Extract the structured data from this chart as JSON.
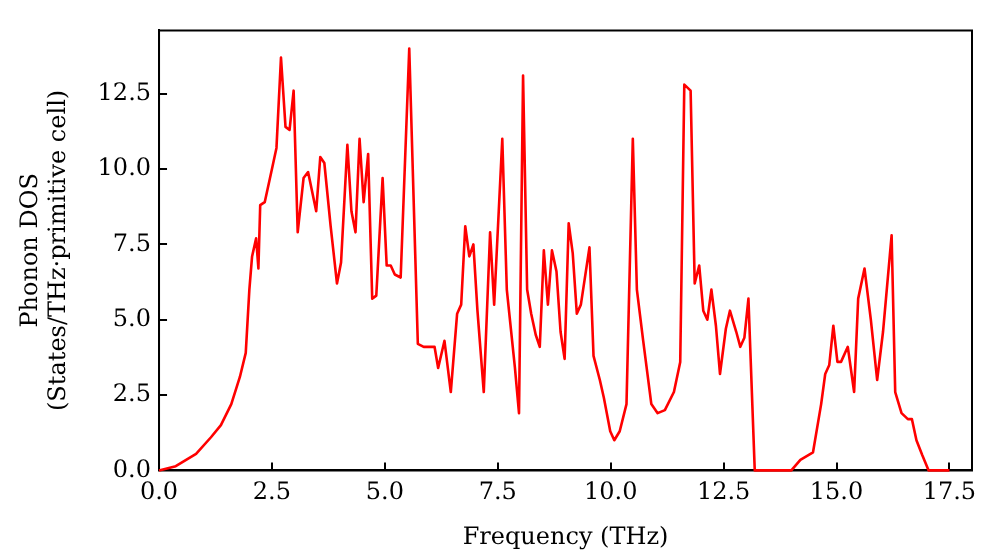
{
  "chart_data": {
    "type": "line",
    "xlabel": "Frequency (THz)",
    "ylabel": "Phonon DOS\n(States/THz·primitive cell)",
    "xlim": [
      0,
      18
    ],
    "ylim": [
      0,
      14.6
    ],
    "xticks": [
      {
        "value": 0,
        "label": "0.0"
      },
      {
        "value": 2.5,
        "label": "2.5"
      },
      {
        "value": 5,
        "label": "5.0"
      },
      {
        "value": 7.5,
        "label": "7.5"
      },
      {
        "value": 10,
        "label": "10.0"
      },
      {
        "value": 12.5,
        "label": "12.5"
      },
      {
        "value": 15,
        "label": "15.0"
      },
      {
        "value": 17.5,
        "label": "17.5"
      }
    ],
    "yticks": [
      {
        "value": 0,
        "label": "0.0"
      },
      {
        "value": 2.5,
        "label": "2.5"
      },
      {
        "value": 5,
        "label": "5.0"
      },
      {
        "value": 7.5,
        "label": "7.5"
      },
      {
        "value": 10,
        "label": "10.0"
      },
      {
        "value": 12.5,
        "label": "12.5"
      }
    ],
    "grid": false,
    "legend": false,
    "marker": "none",
    "line_style": "solid",
    "series": [
      {
        "color": "#ff0000",
        "x": [
          0,
          0.37,
          0.82,
          1.15,
          1.37,
          1.6,
          1.79,
          1.92,
          2.0,
          2.06,
          2.15,
          2.2,
          2.24,
          2.34,
          2.5,
          2.6,
          2.7,
          2.8,
          2.89,
          2.98,
          3.07,
          3.2,
          3.3,
          3.48,
          3.57,
          3.66,
          3.8,
          3.94,
          4.03,
          4.17,
          4.26,
          4.35,
          4.44,
          4.53,
          4.63,
          4.72,
          4.81,
          4.95,
          5.04,
          5.13,
          5.22,
          5.35,
          5.54,
          5.73,
          5.86,
          6.1,
          6.18,
          6.32,
          6.46,
          6.6,
          6.69,
          6.78,
          6.87,
          6.96,
          7.05,
          7.19,
          7.33,
          7.42,
          7.6,
          7.7,
          7.88,
          7.97,
          8.06,
          8.15,
          8.24,
          8.34,
          8.43,
          8.52,
          8.61,
          8.7,
          8.8,
          8.89,
          8.98,
          9.07,
          9.16,
          9.25,
          9.34,
          9.53,
          9.62,
          9.76,
          9.85,
          9.99,
          10.08,
          10.2,
          10.35,
          10.49,
          10.58,
          10.72,
          10.9,
          11.04,
          11.2,
          11.4,
          11.54,
          11.63,
          11.77,
          11.86,
          11.96,
          12.05,
          12.14,
          12.23,
          12.33,
          12.42,
          12.55,
          12.64,
          12.78,
          12.87,
          12.96,
          13.05,
          13.19,
          14.0,
          14.2,
          14.48,
          14.66,
          14.75,
          14.84,
          14.93,
          15.02,
          15.1,
          15.25,
          15.39,
          15.48,
          15.62,
          15.76,
          15.9,
          16.03,
          16.22,
          16.3,
          16.44,
          16.58,
          16.67,
          16.77,
          16.9,
          17.04,
          17.5
        ],
        "values": [
          0,
          0.14,
          0.55,
          1.1,
          1.5,
          2.2,
          3.1,
          3.9,
          6.0,
          7.1,
          7.7,
          6.7,
          8.8,
          8.9,
          10.0,
          10.7,
          13.7,
          11.4,
          11.3,
          12.6,
          7.9,
          9.7,
          9.9,
          8.6,
          10.4,
          10.2,
          8.1,
          6.2,
          6.9,
          10.8,
          8.6,
          7.9,
          11.0,
          8.9,
          10.5,
          5.7,
          5.8,
          9.7,
          6.8,
          6.8,
          6.5,
          6.4,
          14.0,
          4.2,
          4.1,
          4.1,
          3.4,
          4.3,
          2.6,
          5.2,
          5.5,
          8.1,
          7.1,
          7.5,
          5.3,
          2.6,
          7.9,
          5.5,
          11.0,
          6.0,
          3.4,
          1.9,
          13.1,
          6.0,
          5.2,
          4.5,
          4.1,
          7.3,
          5.5,
          7.3,
          6.6,
          4.6,
          3.7,
          8.2,
          7.2,
          5.2,
          5.5,
          7.4,
          3.8,
          3.0,
          2.4,
          1.3,
          1.0,
          1.3,
          2.2,
          11.0,
          6.0,
          4.3,
          2.2,
          1.9,
          2.0,
          2.6,
          3.6,
          12.8,
          12.6,
          6.2,
          6.8,
          5.3,
          5.0,
          6.0,
          4.8,
          3.2,
          4.7,
          5.3,
          4.6,
          4.1,
          4.4,
          5.7,
          0,
          0,
          0.35,
          0.6,
          2.2,
          3.2,
          3.5,
          4.8,
          3.6,
          3.6,
          4.1,
          2.6,
          5.7,
          6.7,
          5.0,
          3.0,
          4.6,
          7.8,
          2.6,
          1.9,
          1.7,
          1.7,
          1.0,
          0.5,
          0,
          0
        ]
      }
    ]
  }
}
